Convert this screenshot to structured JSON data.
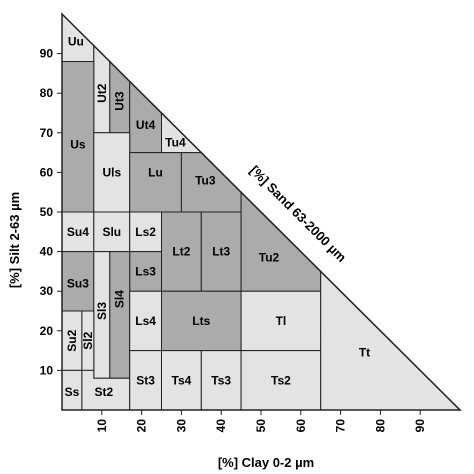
{
  "axes": {
    "y_title": "[%] Silt 2-63 µm",
    "x_title": "[%] Clay 0-2 µm",
    "sand_title": "[%] Sand 63-2000 µm",
    "y_ticks": [
      10,
      20,
      30,
      40,
      50,
      60,
      70,
      80,
      90
    ],
    "x_ticks": [
      10,
      20,
      30,
      40,
      50,
      60,
      70,
      80,
      90
    ]
  },
  "colors": {
    "dark": "#a9abad",
    "light": "#e2e3e4",
    "line": "#222222"
  },
  "classes": [
    {
      "label": "Uu",
      "shade": "light",
      "poly": [
        [
          0,
          100
        ],
        [
          0,
          88
        ],
        [
          8,
          88
        ],
        [
          8,
          92
        ]
      ],
      "label_at": [
        3.5,
        93
      ],
      "rotate": false
    },
    {
      "label": "Ut2",
      "shade": "light",
      "poly": [
        [
          8,
          92
        ],
        [
          8,
          70
        ],
        [
          12,
          70
        ],
        [
          12,
          88
        ]
      ],
      "label_at": [
        10,
        80
      ],
      "rotate": true
    },
    {
      "label": "Ut3",
      "shade": "dark",
      "poly": [
        [
          12,
          88
        ],
        [
          12,
          70
        ],
        [
          17,
          70
        ],
        [
          17,
          83
        ]
      ],
      "label_at": [
        14.5,
        78
      ],
      "rotate": true
    },
    {
      "label": "Ut4",
      "shade": "dark",
      "poly": [
        [
          17,
          83
        ],
        [
          17,
          65
        ],
        [
          25,
          65
        ],
        [
          25,
          75
        ]
      ],
      "label_at": [
        21,
        72
      ],
      "rotate": false
    },
    {
      "label": "Us",
      "shade": "dark",
      "poly": [
        [
          0,
          88
        ],
        [
          0,
          50
        ],
        [
          8,
          50
        ],
        [
          8,
          88
        ]
      ],
      "label_at": [
        4,
        67
      ],
      "rotate": false
    },
    {
      "label": "Tu4",
      "shade": "light",
      "poly": [
        [
          25,
          75
        ],
        [
          25,
          65
        ],
        [
          35,
          65
        ]
      ],
      "label_at": [
        28.5,
        67.5
      ],
      "rotate": false
    },
    {
      "label": "Uls",
      "shade": "light",
      "poly": [
        [
          8,
          70
        ],
        [
          8,
          50
        ],
        [
          17,
          50
        ],
        [
          17,
          70
        ]
      ],
      "label_at": [
        12.5,
        60
      ],
      "rotate": false
    },
    {
      "label": "Lu",
      "shade": "dark",
      "poly": [
        [
          17,
          65
        ],
        [
          17,
          50
        ],
        [
          30,
          50
        ],
        [
          30,
          65
        ]
      ],
      "label_at": [
        23.5,
        60
      ],
      "rotate": false
    },
    {
      "label": "Tu3",
      "shade": "dark",
      "poly": [
        [
          30,
          65
        ],
        [
          30,
          50
        ],
        [
          45,
          50
        ],
        [
          45,
          55
        ],
        [
          35,
          65
        ]
      ],
      "label_at": [
        36,
        58
      ],
      "rotate": false
    },
    {
      "label": "Su4",
      "shade": "light",
      "poly": [
        [
          0,
          50
        ],
        [
          0,
          40
        ],
        [
          8,
          40
        ],
        [
          8,
          50
        ]
      ],
      "label_at": [
        4,
        45
      ],
      "rotate": false
    },
    {
      "label": "Slu",
      "shade": "light",
      "poly": [
        [
          8,
          50
        ],
        [
          8,
          40
        ],
        [
          17,
          40
        ],
        [
          17,
          50
        ]
      ],
      "label_at": [
        12.5,
        45
      ],
      "rotate": false
    },
    {
      "label": "Ls2",
      "shade": "light",
      "poly": [
        [
          17,
          50
        ],
        [
          17,
          40
        ],
        [
          25,
          40
        ],
        [
          25,
          50
        ]
      ],
      "label_at": [
        21,
        45
      ],
      "rotate": false
    },
    {
      "label": "Lt2",
      "shade": "dark",
      "poly": [
        [
          25,
          50
        ],
        [
          25,
          30
        ],
        [
          35,
          30
        ],
        [
          35,
          50
        ]
      ],
      "label_at": [
        30,
        40
      ],
      "rotate": false
    },
    {
      "label": "Lt3",
      "shade": "dark",
      "poly": [
        [
          35,
          50
        ],
        [
          35,
          30
        ],
        [
          45,
          30
        ],
        [
          45,
          50
        ]
      ],
      "label_at": [
        40,
        40
      ],
      "rotate": false
    },
    {
      "label": "Tu2",
      "shade": "dark",
      "poly": [
        [
          45,
          55
        ],
        [
          45,
          30
        ],
        [
          65,
          30
        ],
        [
          65,
          35
        ]
      ],
      "label_at": [
        52,
        38.5
      ],
      "rotate": false
    },
    {
      "label": "Su3",
      "shade": "dark",
      "poly": [
        [
          0,
          40
        ],
        [
          0,
          25
        ],
        [
          8,
          25
        ],
        [
          8,
          40
        ]
      ],
      "label_at": [
        4,
        32
      ],
      "rotate": false
    },
    {
      "label": "Ls3",
      "shade": "dark",
      "poly": [
        [
          17,
          40
        ],
        [
          17,
          30
        ],
        [
          25,
          30
        ],
        [
          25,
          40
        ]
      ],
      "label_at": [
        21,
        35
      ],
      "rotate": false
    },
    {
      "label": "Sl3",
      "shade": "light",
      "poly": [
        [
          8,
          40
        ],
        [
          8,
          8
        ],
        [
          12,
          8
        ],
        [
          12,
          40
        ]
      ],
      "label_at": [
        10,
        25
      ],
      "rotate": true
    },
    {
      "label": "Sl4",
      "shade": "dark",
      "poly": [
        [
          12,
          40
        ],
        [
          12,
          8
        ],
        [
          17,
          8
        ],
        [
          17,
          40
        ]
      ],
      "label_at": [
        14.5,
        28
      ],
      "rotate": true
    },
    {
      "label": "Su2",
      "shade": "light",
      "poly": [
        [
          0,
          25
        ],
        [
          0,
          10
        ],
        [
          5,
          10
        ],
        [
          5,
          25
        ]
      ],
      "label_at": [
        2.5,
        17.5
      ],
      "rotate": true
    },
    {
      "label": "Sl2",
      "shade": "light",
      "poly": [
        [
          5,
          25
        ],
        [
          5,
          10
        ],
        [
          8,
          10
        ],
        [
          8,
          25
        ]
      ],
      "label_at": [
        6.5,
        17.5
      ],
      "rotate": true
    },
    {
      "label": "Ls4",
      "shade": "light",
      "poly": [
        [
          17,
          30
        ],
        [
          17,
          15
        ],
        [
          25,
          15
        ],
        [
          25,
          30
        ]
      ],
      "label_at": [
        21,
        22.5
      ],
      "rotate": false
    },
    {
      "label": "Lts",
      "shade": "dark",
      "poly": [
        [
          25,
          30
        ],
        [
          25,
          15
        ],
        [
          45,
          15
        ],
        [
          45,
          30
        ]
      ],
      "label_at": [
        35,
        22.5
      ],
      "rotate": false
    },
    {
      "label": "Tl",
      "shade": "light",
      "poly": [
        [
          45,
          30
        ],
        [
          45,
          15
        ],
        [
          65,
          15
        ],
        [
          65,
          30
        ]
      ],
      "label_at": [
        55,
        22.5
      ],
      "rotate": false
    },
    {
      "label": "Ss",
      "shade": "light",
      "poly": [
        [
          0,
          10
        ],
        [
          0,
          0
        ],
        [
          5,
          0
        ],
        [
          5,
          10
        ]
      ],
      "label_at": [
        2.5,
        4.5
      ],
      "rotate": false
    },
    {
      "label": "St2",
      "shade": "light",
      "poly": [
        [
          5,
          10
        ],
        [
          5,
          0
        ],
        [
          17,
          0
        ],
        [
          17,
          8
        ],
        [
          8,
          8
        ],
        [
          8,
          10
        ]
      ],
      "label_at": [
        10.5,
        4.5
      ],
      "rotate": false
    },
    {
      "label": "St3",
      "shade": "light",
      "poly": [
        [
          17,
          15
        ],
        [
          17,
          0
        ],
        [
          25,
          0
        ],
        [
          25,
          15
        ]
      ],
      "label_at": [
        21,
        7.5
      ],
      "rotate": false
    },
    {
      "label": "Ts4",
      "shade": "light",
      "poly": [
        [
          25,
          15
        ],
        [
          25,
          0
        ],
        [
          35,
          0
        ],
        [
          35,
          15
        ]
      ],
      "label_at": [
        30,
        7.5
      ],
      "rotate": false
    },
    {
      "label": "Ts3",
      "shade": "light",
      "poly": [
        [
          35,
          15
        ],
        [
          35,
          0
        ],
        [
          45,
          0
        ],
        [
          45,
          15
        ]
      ],
      "label_at": [
        40,
        7.5
      ],
      "rotate": false
    },
    {
      "label": "Ts2",
      "shade": "light",
      "poly": [
        [
          45,
          15
        ],
        [
          45,
          0
        ],
        [
          65,
          0
        ],
        [
          65,
          15
        ]
      ],
      "label_at": [
        55,
        7.5
      ],
      "rotate": false
    },
    {
      "label": "Tt",
      "shade": "light",
      "poly": [
        [
          65,
          35
        ],
        [
          65,
          0
        ],
        [
          100,
          0
        ]
      ],
      "label_at": [
        76,
        14.5
      ],
      "rotate": false
    }
  ]
}
